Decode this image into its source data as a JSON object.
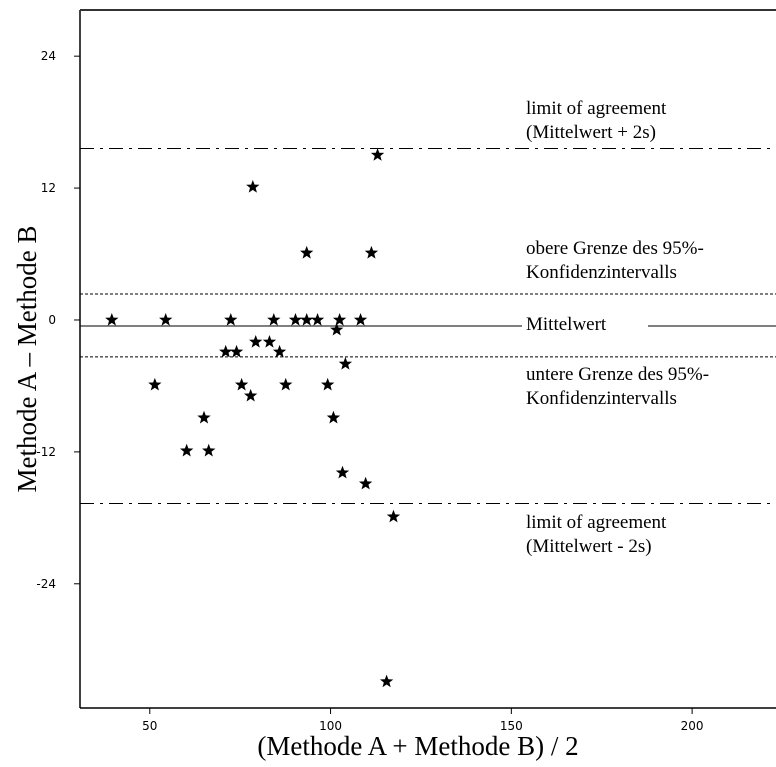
{
  "chart_data": {
    "type": "scatter",
    "x_label": "(Methode A + Methode B) / 2",
    "y_label": "Methode A – Methode B",
    "xlim": [
      30.7,
      223.2
    ],
    "ylim": [
      -35.3,
      28.2
    ],
    "xticks": [
      50,
      100,
      150,
      200
    ],
    "yticks": [
      -24,
      -12,
      0,
      12,
      24
    ],
    "color": "#000000",
    "x": [
      39.5,
      54.4,
      72.4,
      84.3,
      90.3,
      93.4,
      96.4,
      102.5,
      108.3,
      113,
      78.5,
      93.4,
      111.3,
      101.7,
      71,
      74,
      79.3,
      83.1,
      85.9,
      104.1,
      51.4,
      75.4,
      87.6,
      99.2,
      77.9,
      65,
      100.8,
      60.2,
      66.3,
      103.3,
      109.7,
      117.4,
      115.5
    ],
    "values": [
      0,
      0,
      0,
      0,
      0,
      0,
      0,
      0,
      0,
      15,
      12.1,
      6.1,
      6.1,
      -0.9,
      -2.9,
      -2.9,
      -2,
      -2,
      -2.9,
      -4,
      -5.9,
      -5.9,
      -5.9,
      -5.9,
      -6.9,
      -8.9,
      -8.9,
      -11.9,
      -11.9,
      -13.9,
      -14.9,
      -17.9,
      -32.9
    ],
    "reference_lines": [
      {
        "value": 15.6,
        "style": "dashdot"
      },
      {
        "value": 2.36,
        "style": "dashed"
      },
      {
        "value": -0.55,
        "style": "solid"
      },
      {
        "value": -3.36,
        "style": "dashed"
      },
      {
        "value": -16.7,
        "style": "dashdot"
      }
    ],
    "annotations": [
      {
        "lines": [
          "limit of agreement",
          "(Mittelwert + 2s)"
        ]
      },
      {
        "lines": [
          "obere Grenze des 95%-",
          "Konfidenzintervalls"
        ]
      },
      {
        "lines": [
          "Mittelwert"
        ]
      },
      {
        "lines": [
          "untere Grenze des 95%-",
          "Konfidenzintervalls"
        ]
      },
      {
        "lines": [
          "limit of agreement",
          "(Mittelwert - 2s)"
        ]
      }
    ]
  }
}
